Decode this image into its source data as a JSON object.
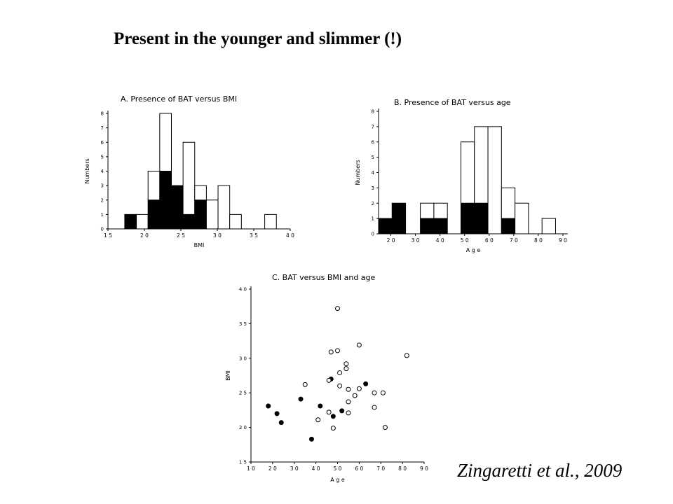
{
  "slide": {
    "title": "Present in the younger and slimmer (!)",
    "citation": "Zingaretti et al., 2009"
  },
  "chart_data": [
    {
      "type": "bar",
      "title": "A.  Presence  of  BAT  versus  BMI",
      "xlabel": "BMI",
      "ylabel": "Numbers",
      "xlim": [
        15,
        40
      ],
      "ylim": [
        0,
        8
      ],
      "xticks": [
        15,
        20,
        25,
        30,
        35,
        40
      ],
      "xtick_labels": [
        "1 5",
        "2 0",
        "2 5",
        "3 0",
        "3 5",
        "4 0"
      ],
      "yticks": [
        0,
        1,
        2,
        3,
        4,
        5,
        6,
        7,
        8
      ],
      "bin_width": 1.6,
      "bins": [
        17.3,
        18.9,
        20.5,
        22.1,
        23.7,
        25.3,
        26.9,
        28.5,
        30.1,
        31.7,
        36.5
      ],
      "series": [
        {
          "fill": "#000000",
          "values": [
            1,
            0,
            2,
            4,
            3,
            1,
            2,
            0,
            0,
            0,
            0
          ]
        },
        {
          "fill": "#ffffff",
          "values": [
            0,
            1,
            2,
            4,
            0,
            5,
            1,
            2,
            3,
            1,
            1
          ]
        }
      ],
      "grid": false
    },
    {
      "type": "bar",
      "title": "B.  Presence  of  BAT  versus  age",
      "xlabel": "A g e",
      "ylabel": "Numbers",
      "xlim": [
        15,
        92
      ],
      "ylim": [
        0,
        8
      ],
      "xticks": [
        20,
        30,
        40,
        50,
        60,
        70,
        80,
        90
      ],
      "xtick_labels": [
        "2 0",
        "3 0",
        "4 0",
        "5 0",
        "6 0",
        "7 0",
        "8 0",
        "9 0"
      ],
      "yticks": [
        0,
        1,
        2,
        3,
        4,
        5,
        6,
        7,
        8
      ],
      "bin_width": 5.5,
      "bins": [
        15.0,
        20.5,
        32.0,
        37.5,
        48.5,
        54.0,
        59.5,
        65.0,
        70.5,
        81.5
      ],
      "series": [
        {
          "fill": "#000000",
          "values": [
            1,
            2,
            1,
            1,
            2,
            2,
            0,
            1,
            0,
            0
          ]
        },
        {
          "fill": "#ffffff",
          "values": [
            0,
            0,
            1,
            1,
            4,
            5,
            7,
            2,
            2,
            1
          ]
        }
      ],
      "grid": false
    },
    {
      "type": "scatter",
      "title": "C.   BAT  versus  BMI  and  age",
      "xlabel": "A g e",
      "ylabel": "BMI",
      "xlim": [
        10,
        90
      ],
      "ylim": [
        15,
        40
      ],
      "xticks": [
        10,
        20,
        30,
        40,
        50,
        60,
        70,
        80,
        90
      ],
      "xtick_labels": [
        "1 0",
        "2 0",
        "3 0",
        "4 0",
        "5 0",
        "6 0",
        "7 0",
        "8 0",
        "9 0"
      ],
      "yticks": [
        15,
        20,
        25,
        30,
        35,
        40
      ],
      "ytick_labels": [
        "1 5",
        "2 0",
        "2 5",
        "3 0",
        "3 5",
        "4 0"
      ],
      "series": [
        {
          "marker": "filled",
          "points": [
            [
              18,
              23.1
            ],
            [
              22,
              22.0
            ],
            [
              24,
              20.7
            ],
            [
              33,
              24.1
            ],
            [
              38,
              18.3
            ],
            [
              42,
              23.1
            ],
            [
              47,
              27.0
            ],
            [
              48,
              21.6
            ],
            [
              52,
              22.4
            ],
            [
              63,
              26.3
            ]
          ]
        },
        {
          "marker": "open",
          "points": [
            [
              50,
              37.2
            ],
            [
              60,
              31.9
            ],
            [
              47,
              30.9
            ],
            [
              50,
              31.1
            ],
            [
              82,
              30.4
            ],
            [
              54,
              29.2
            ],
            [
              54,
              28.5
            ],
            [
              51,
              27.9
            ],
            [
              46,
              26.8
            ],
            [
              35,
              26.2
            ],
            [
              51,
              26.0
            ],
            [
              55,
              25.5
            ],
            [
              60,
              25.6
            ],
            [
              58,
              24.6
            ],
            [
              67,
              25.0
            ],
            [
              71,
              25.0
            ],
            [
              55,
              23.7
            ],
            [
              67,
              22.9
            ],
            [
              46,
              22.2
            ],
            [
              55,
              22.1
            ],
            [
              41,
              21.1
            ],
            [
              48,
              19.9
            ],
            [
              72,
              20.0
            ]
          ]
        }
      ],
      "grid": false
    }
  ]
}
